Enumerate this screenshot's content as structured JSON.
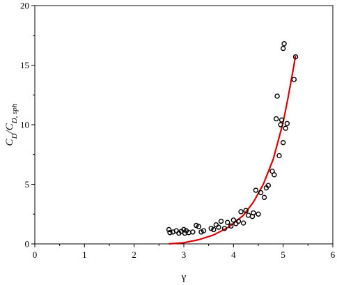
{
  "chart_data": {
    "type": "scatter",
    "title": "",
    "xlabel": "γ",
    "ylabel": {
      "base": "C",
      "num_sub": "D",
      "den_sub": "D, sph"
    },
    "xlim": [
      0,
      6
    ],
    "ylim": [
      0,
      20
    ],
    "x_ticks": [
      "0",
      "1",
      "2",
      "3",
      "4",
      "5",
      "6"
    ],
    "y_ticks": [
      "0",
      "5",
      "10",
      "15",
      "20"
    ],
    "grid": false,
    "colors": {
      "markers": "#000000",
      "fit_line": "#dd0000"
    },
    "series": [
      {
        "kind": "markers",
        "marker": "open-circle",
        "points": [
          [
            2.7,
            1.2
          ],
          [
            2.72,
            0.95
          ],
          [
            2.78,
            1.0
          ],
          [
            2.85,
            1.1
          ],
          [
            2.9,
            0.9
          ],
          [
            2.95,
            1.05
          ],
          [
            3.0,
            1.2
          ],
          [
            3.02,
            0.9
          ],
          [
            3.05,
            1.1
          ],
          [
            3.1,
            0.95
          ],
          [
            3.18,
            1.0
          ],
          [
            3.25,
            1.55
          ],
          [
            3.3,
            1.45
          ],
          [
            3.35,
            1.0
          ],
          [
            3.4,
            1.1
          ],
          [
            3.55,
            1.3
          ],
          [
            3.6,
            1.2
          ],
          [
            3.65,
            1.6
          ],
          [
            3.7,
            1.4
          ],
          [
            3.75,
            1.9
          ],
          [
            3.82,
            1.3
          ],
          [
            3.88,
            1.8
          ],
          [
            3.95,
            1.5
          ],
          [
            4.0,
            2.0
          ],
          [
            4.05,
            1.7
          ],
          [
            4.1,
            1.9
          ],
          [
            4.15,
            2.7
          ],
          [
            4.2,
            1.75
          ],
          [
            4.25,
            2.8
          ],
          [
            4.3,
            2.4
          ],
          [
            4.38,
            2.3
          ],
          [
            4.4,
            2.6
          ],
          [
            4.45,
            4.5
          ],
          [
            4.5,
            2.5
          ],
          [
            4.55,
            4.3
          ],
          [
            4.62,
            3.9
          ],
          [
            4.66,
            4.7
          ],
          [
            4.7,
            4.9
          ],
          [
            4.78,
            6.1
          ],
          [
            4.82,
            5.8
          ],
          [
            4.86,
            10.5
          ],
          [
            4.88,
            12.4
          ],
          [
            4.92,
            7.4
          ],
          [
            4.95,
            10.0
          ],
          [
            4.97,
            10.4
          ],
          [
            5.0,
            8.5
          ],
          [
            5.0,
            16.4
          ],
          [
            5.02,
            16.8
          ],
          [
            5.05,
            9.7
          ],
          [
            5.08,
            10.1
          ],
          [
            5.22,
            13.8
          ],
          [
            5.25,
            15.7
          ]
        ]
      },
      {
        "kind": "line",
        "curve": [
          [
            2.7,
            0.0
          ],
          [
            3.0,
            0.1
          ],
          [
            3.3,
            0.35
          ],
          [
            3.6,
            0.75
          ],
          [
            3.9,
            1.4
          ],
          [
            4.2,
            2.4
          ],
          [
            4.4,
            3.5
          ],
          [
            4.6,
            5.0
          ],
          [
            4.8,
            7.1
          ],
          [
            5.0,
            10.2
          ],
          [
            5.1,
            12.3
          ],
          [
            5.2,
            14.6
          ],
          [
            5.25,
            15.8
          ]
        ]
      }
    ]
  }
}
